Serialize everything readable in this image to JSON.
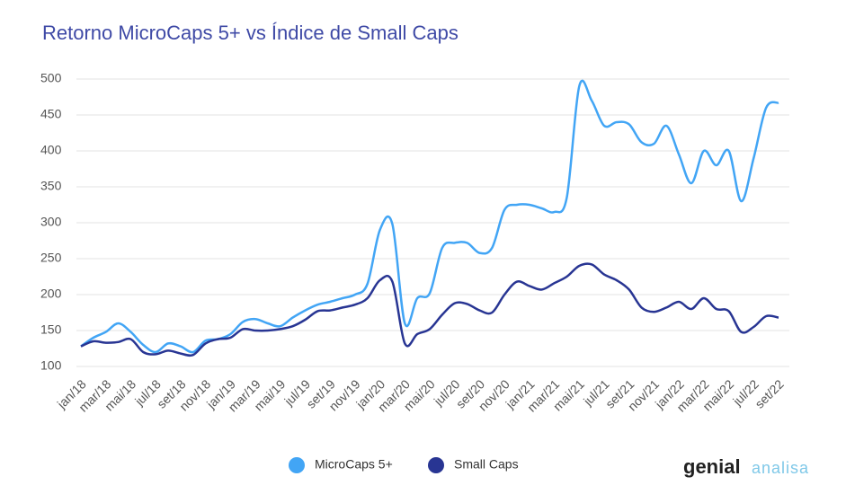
{
  "chart_data": {
    "type": "line",
    "title": "Retorno MicroCaps 5+ vs Índice de Small Caps",
    "categories": [
      "jan/18",
      null,
      "mar/18",
      null,
      "mai/18",
      null,
      "jul/18",
      null,
      "set/18",
      null,
      "nov/18",
      null,
      "jan/19",
      null,
      "mar/19",
      null,
      "mai/19",
      null,
      "jul/19",
      null,
      "set/19",
      null,
      "nov/19",
      null,
      "jan/20",
      null,
      "mar/20",
      null,
      "mai/20",
      null,
      "jul/20",
      null,
      "set/20",
      null,
      "nov/20",
      null,
      "jan/21",
      null,
      "mar/21",
      null,
      "mai/21",
      null,
      "jul/21",
      null,
      "set/21",
      null,
      "nov/21",
      null,
      "jan/22",
      null,
      "mar/22",
      null,
      "mai/22",
      null,
      "jul/22",
      null,
      "set/22"
    ],
    "series": [
      {
        "name": "MicroCaps 5+",
        "color": "#42a5f5",
        "values": [
          128,
          140,
          148,
          160,
          148,
          130,
          120,
          132,
          128,
          120,
          136,
          138,
          145,
          162,
          166,
          160,
          156,
          168,
          178,
          186,
          190,
          195,
          200,
          215,
          290,
          298,
          160,
          195,
          202,
          265,
          272,
          272,
          258,
          265,
          318,
          325,
          325,
          320,
          315,
          335,
          490,
          470,
          435,
          440,
          437,
          412,
          410,
          435,
          395,
          355,
          400,
          380,
          400,
          330,
          390,
          460,
          467
        ]
      },
      {
        "name": "Small Caps",
        "color": "#283593",
        "values": [
          128,
          135,
          133,
          134,
          138,
          120,
          117,
          122,
          118,
          116,
          132,
          138,
          140,
          152,
          150,
          150,
          152,
          156,
          165,
          177,
          178,
          182,
          186,
          195,
          220,
          218,
          132,
          145,
          152,
          172,
          188,
          187,
          178,
          175,
          200,
          218,
          212,
          207,
          216,
          225,
          240,
          242,
          228,
          220,
          207,
          182,
          176,
          182,
          190,
          180,
          195,
          180,
          177,
          148,
          155,
          170,
          168
        ]
      }
    ],
    "ylim": [
      100,
      500
    ],
    "yticks": [
      100,
      150,
      200,
      250,
      300,
      350,
      400,
      450,
      500
    ],
    "grid": true,
    "legend": "bottom",
    "brand": {
      "name": "genial",
      "suffix": "analisa"
    }
  }
}
